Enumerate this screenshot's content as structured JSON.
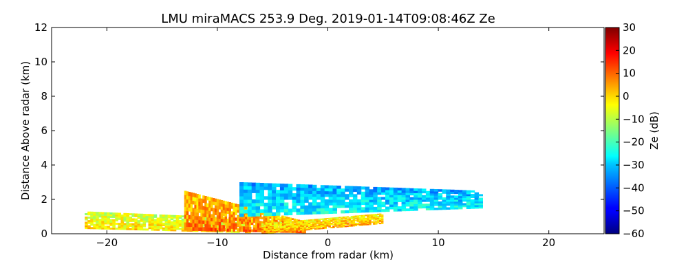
{
  "chart_data": {
    "type": "heatmap",
    "title": "LMU miraMACS 253.9 Deg. 2019-01-14T09:08:46Z  Ze",
    "xlabel": "Distance from radar (km)",
    "ylabel": "Distance Above radar  (km)",
    "xlim": [
      -25,
      25
    ],
    "ylim": [
      0,
      12
    ],
    "xticks": [
      -20,
      -10,
      0,
      10,
      20
    ],
    "xtick_labels": [
      "−20",
      "−10",
      "0",
      "10",
      "20"
    ],
    "yticks": [
      0,
      2,
      4,
      6,
      8,
      10,
      12
    ],
    "ytick_labels": [
      "0",
      "2",
      "4",
      "6",
      "8",
      "10",
      "12"
    ],
    "colorbar": {
      "label": "Ze (dB)",
      "range": [
        -60,
        30
      ],
      "ticks": [
        30,
        20,
        10,
        0,
        -10,
        -20,
        -30,
        -40,
        -50,
        -60
      ],
      "tick_labels": [
        "30",
        "20",
        "10",
        "0",
        "−10",
        "−20",
        "−30",
        "−40",
        "−50",
        "−60"
      ],
      "colormap": "jet"
    },
    "echo_regions": [
      {
        "name": "left-low-layer",
        "x": [
          -22,
          -7
        ],
        "ybottom": [
          0.3,
          0.05
        ],
        "ytop": [
          1.3,
          0.9
        ],
        "ze_db": -5
      },
      {
        "name": "left-core",
        "x": [
          -13,
          -2
        ],
        "ybottom": [
          0.2,
          0.05
        ],
        "ytop": [
          2.5,
          0.7
        ],
        "ze_db": 5
      },
      {
        "name": "central-upper-cloud",
        "x": [
          -8,
          14
        ],
        "ybottom": [
          1.0,
          1.5
        ],
        "ytop": [
          3.0,
          2.5
        ],
        "ze_db": -30
      },
      {
        "name": "near-radar-base",
        "x": [
          -6,
          5
        ],
        "ybottom": [
          0.0,
          0.6
        ],
        "ytop": [
          0.6,
          1.2
        ],
        "ze_db": 0
      }
    ]
  }
}
